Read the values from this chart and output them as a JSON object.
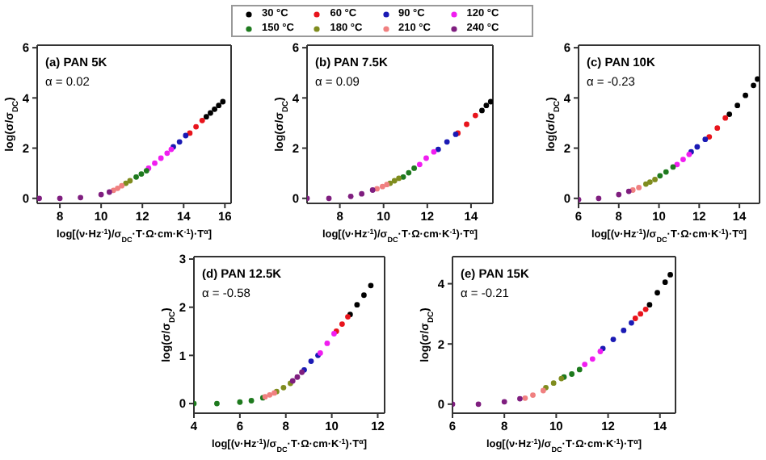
{
  "chart_data": [
    {
      "type": "scatter",
      "xlabel": "log[(ν·Hz$^{-1}$)/σ$_{DC}$·T·Ω·cm·K$^{-1}$)·T$^{α}$]",
      "ylabel": "log(σ/σ$_{DC}$)",
      "annotations": [
        "(a) PAN 5K",
        "α = 0.02"
      ],
      "xlim": [
        6.9,
        16.3
      ],
      "xticks": [
        8,
        10,
        12,
        14,
        16
      ],
      "ylim": [
        -0.2,
        6.1
      ],
      "yticks": [
        0,
        2,
        4,
        6
      ],
      "marker": "circle",
      "legend": "top",
      "series": [
        {
          "name": "30 °C",
          "color": "#000000",
          "x": [
            15.1,
            15.3,
            15.5,
            15.7,
            15.9
          ],
          "values": [
            3.25,
            3.4,
            3.55,
            3.7,
            3.85
          ]
        },
        {
          "name": "60 °C",
          "color": "#e8141c",
          "x": [
            14.3,
            14.6,
            14.9
          ],
          "values": [
            2.6,
            2.85,
            3.1
          ]
        },
        {
          "name": "90 °C",
          "color": "#1a1ab4",
          "x": [
            13.5,
            13.8,
            14.1
          ],
          "values": [
            2.05,
            2.25,
            2.5
          ]
        },
        {
          "name": "120 °C",
          "color": "#f01ef0",
          "x": [
            12.3,
            12.6,
            12.9,
            13.2,
            13.4
          ],
          "values": [
            1.2,
            1.4,
            1.6,
            1.8,
            1.95
          ]
        },
        {
          "name": "150 °C",
          "color": "#1e7a1e",
          "x": [
            11.7,
            11.95,
            12.2
          ],
          "values": [
            0.85,
            0.97,
            1.1
          ]
        },
        {
          "name": "180 °C",
          "color": "#7f8c1e",
          "x": [
            11.2,
            11.4
          ],
          "values": [
            0.6,
            0.7
          ]
        },
        {
          "name": "210 °C",
          "color": "#f08080",
          "x": [
            10.6,
            10.8,
            11.0
          ],
          "values": [
            0.32,
            0.4,
            0.5
          ]
        },
        {
          "name": "240 °C",
          "color": "#7f1e7f",
          "x": [
            7,
            8,
            9,
            10,
            10.4
          ],
          "values": [
            0,
            0,
            0.03,
            0.15,
            0.25
          ]
        }
      ]
    },
    {
      "type": "scatter",
      "xlabel": "log[(ν·Hz$^{-1}$)/σ$_{DC}$·T·Ω·cm·K$^{-1}$)·T$^{α}$]",
      "ylabel": "log(σ/σ$_{DC}$)",
      "annotations": [
        "(b) PAN 7.5K",
        "α = 0.09"
      ],
      "xlim": [
        6.5,
        15
      ],
      "xticks": [
        8,
        10,
        12,
        14
      ],
      "ylim": [
        -0.2,
        6.1
      ],
      "yticks": [
        0,
        2,
        4,
        6
      ],
      "marker": "circle",
      "series": [
        {
          "color": "#000000",
          "x": [
            14.5,
            14.7,
            14.9
          ],
          "values": [
            3.5,
            3.7,
            3.85
          ]
        },
        {
          "color": "#e8141c",
          "x": [
            13.4,
            13.8,
            14.2
          ],
          "values": [
            2.6,
            2.95,
            3.3
          ]
        },
        {
          "color": "#1a1ab4",
          "x": [
            12.5,
            12.9,
            13.3
          ],
          "values": [
            1.95,
            2.25,
            2.55
          ]
        },
        {
          "color": "#f01ef0",
          "x": [
            11.65,
            11.95,
            12.3
          ],
          "values": [
            1.35,
            1.6,
            1.85
          ]
        },
        {
          "color": "#1e7a1e",
          "x": [
            10.9,
            11.15,
            11.4
          ],
          "values": [
            0.85,
            1.02,
            1.2
          ]
        },
        {
          "color": "#7f8c1e",
          "x": [
            10.3,
            10.5,
            10.7
          ],
          "values": [
            0.6,
            0.7,
            0.8
          ]
        },
        {
          "color": "#f08080",
          "x": [
            9.7,
            9.95,
            10.15
          ],
          "values": [
            0.38,
            0.47,
            0.55
          ]
        },
        {
          "color": "#7f1e7f",
          "x": [
            6.5,
            7.5,
            8.5,
            9.0,
            9.5
          ],
          "values": [
            0,
            0,
            0.08,
            0.18,
            0.33
          ]
        }
      ]
    },
    {
      "type": "scatter",
      "xlabel": "log[(ν·Hz$^{-1}$)/σ$_{DC}$·T·Ω·cm·K$^{-1}$)·T$^{α}$]",
      "ylabel": "log(σ/σ$_{DC}$)",
      "annotations": [
        "(c) PAN 10K",
        "α = -0.23"
      ],
      "xlim": [
        6,
        15
      ],
      "xticks": [
        6,
        8,
        10,
        12,
        14
      ],
      "ylim": [
        -0.2,
        6.1
      ],
      "yticks": [
        0,
        2,
        4,
        6
      ],
      "marker": "circle",
      "series": [
        {
          "color": "#000000",
          "x": [
            13.5,
            13.9,
            14.3,
            14.7,
            14.9
          ],
          "values": [
            3.35,
            3.7,
            4.1,
            4.5,
            4.75
          ]
        },
        {
          "color": "#e8141c",
          "x": [
            12.5,
            12.9,
            13.3
          ],
          "values": [
            2.45,
            2.8,
            3.2
          ]
        },
        {
          "color": "#1a1ab4",
          "x": [
            11.6,
            11.9,
            12.3
          ],
          "values": [
            1.85,
            2.05,
            2.35
          ]
        },
        {
          "color": "#f01ef0",
          "x": [
            10.9,
            11.2,
            11.5
          ],
          "values": [
            1.35,
            1.55,
            1.75
          ]
        },
        {
          "color": "#1e7a1e",
          "x": [
            10.05,
            10.35,
            10.7
          ],
          "values": [
            0.9,
            1.05,
            1.25
          ]
        },
        {
          "color": "#7f8c1e",
          "x": [
            9.35,
            9.55,
            9.8
          ],
          "values": [
            0.57,
            0.65,
            0.75
          ]
        },
        {
          "color": "#f08080",
          "x": [
            8.7,
            9.0
          ],
          "values": [
            0.33,
            0.43
          ]
        },
        {
          "color": "#7f1e7f",
          "x": [
            6,
            7,
            8,
            8.5
          ],
          "values": [
            -0.05,
            0,
            0.15,
            0.28
          ]
        }
      ]
    },
    {
      "type": "scatter",
      "xlabel": "log[(ν·Hz$^{-1}$)/σ$_{DC}$·T·Ω·cm·K$^{-1}$)·T$^{α}$]",
      "ylabel": "log(σ/σ$_{DC}$)",
      "annotations": [
        "(d) PAN 12.5K",
        "α = -0.58"
      ],
      "xlim": [
        4,
        12.3
      ],
      "xticks": [
        4,
        6,
        8,
        10,
        12
      ],
      "ylim": [
        -0.2,
        3.05
      ],
      "yticks": [
        0,
        1,
        2,
        3
      ],
      "marker": "circle",
      "series": [
        {
          "color": "#000000",
          "x": [
            10.8,
            11.1,
            11.4,
            11.7
          ],
          "values": [
            1.85,
            2.05,
            2.25,
            2.45
          ]
        },
        {
          "color": "#e8141c",
          "x": [
            10.2,
            10.45,
            10.7
          ],
          "values": [
            1.5,
            1.65,
            1.8
          ]
        },
        {
          "color": "#1a1ab4",
          "x": [
            8.8,
            9.1,
            9.4
          ],
          "values": [
            0.7,
            0.88,
            1.0
          ]
        },
        {
          "color": "#f01ef0",
          "x": [
            9.5,
            9.8,
            10.1
          ],
          "values": [
            1.05,
            1.25,
            1.45
          ]
        },
        {
          "color": "#1e7a1e",
          "x": [
            4,
            5,
            6,
            6.5,
            7
          ],
          "values": [
            0,
            0,
            0.03,
            0.06,
            0.12
          ]
        },
        {
          "color": "#7f8c1e",
          "x": [
            7.6,
            7.9,
            8.2
          ],
          "values": [
            0.25,
            0.33,
            0.42
          ]
        },
        {
          "color": "#f08080",
          "x": [
            7.1,
            7.3,
            7.5
          ],
          "values": [
            0.14,
            0.18,
            0.22
          ]
        },
        {
          "color": "#7f1e7f",
          "x": [
            8.3,
            8.5,
            8.7
          ],
          "values": [
            0.47,
            0.55,
            0.65
          ]
        }
      ]
    },
    {
      "type": "scatter",
      "xlabel": "log[(ν·Hz$^{-1}$)/σ$_{DC}$·T·Ω·cm·K$^{-1}$)·T$^{α}$]",
      "ylabel": "log(σ/σ$_{DC}$)",
      "annotations": [
        "(e) PAN 15K",
        "α = -0.21"
      ],
      "xlim": [
        6,
        14.6
      ],
      "xticks": [
        6,
        8,
        10,
        12,
        14
      ],
      "ylim": [
        -0.3,
        4.9
      ],
      "yticks": [
        0,
        2,
        4
      ],
      "marker": "circle",
      "series": [
        {
          "color": "#000000",
          "x": [
            13.6,
            13.9,
            14.2,
            14.4
          ],
          "values": [
            3.3,
            3.7,
            4.05,
            4.3
          ]
        },
        {
          "color": "#e8141c",
          "x": [
            13.05,
            13.25,
            13.45
          ],
          "values": [
            2.85,
            3.0,
            3.15
          ]
        },
        {
          "color": "#1a1ab4",
          "x": [
            11.8,
            12.2,
            12.6,
            12.9
          ],
          "values": [
            1.85,
            2.15,
            2.45,
            2.7
          ]
        },
        {
          "color": "#f01ef0",
          "x": [
            11.1,
            11.4,
            11.7
          ],
          "values": [
            1.32,
            1.5,
            1.75
          ]
        },
        {
          "color": "#1e7a1e",
          "x": [
            10.3,
            10.6,
            10.9
          ],
          "values": [
            0.9,
            1.0,
            1.15
          ]
        },
        {
          "color": "#7f8c1e",
          "x": [
            9.6,
            9.9,
            10.2
          ],
          "values": [
            0.55,
            0.7,
            0.85
          ]
        },
        {
          "color": "#f08080",
          "x": [
            8.8,
            9.1,
            9.5
          ],
          "values": [
            0.2,
            0.3,
            0.45
          ]
        },
        {
          "color": "#7f1e7f",
          "x": [
            6,
            7,
            8,
            8.6
          ],
          "values": [
            0,
            0,
            0.08,
            0.18
          ]
        }
      ]
    }
  ]
}
